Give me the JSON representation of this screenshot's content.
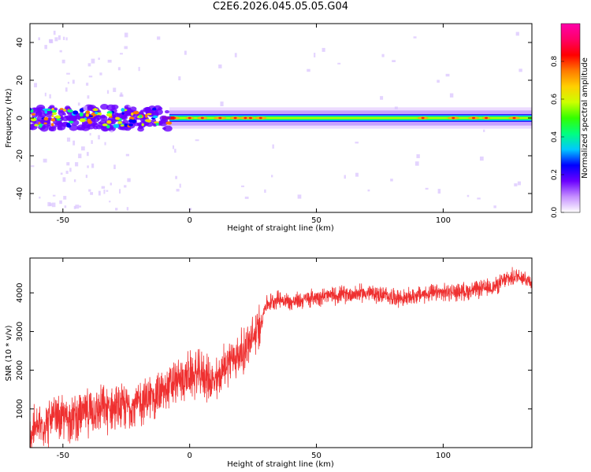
{
  "title": "C2E6.2026.045.05.05.G04",
  "chart_data": [
    {
      "type": "heatmap",
      "title": "C2E6.2026.045.05.05.G04",
      "xlabel": "Height of straight line (km)",
      "ylabel": "Frequency (Hz)",
      "xlim": [
        -63,
        135
      ],
      "ylim": [
        -50,
        50
      ],
      "xticks": [
        -50,
        0,
        50,
        100
      ],
      "yticks": [
        -40,
        -20,
        0,
        20,
        40
      ],
      "grid": false,
      "description_values": {
        "band_center_hz": 0,
        "band_halfwidth_hz_left": 6,
        "band_halfwidth_hz_right": 4
      },
      "colorbar": {
        "label": "Normalized spectral amplitude",
        "range": [
          0.0,
          1.0
        ],
        "ticks": [
          0.0,
          0.2,
          0.4,
          0.6,
          0.8
        ],
        "colors": [
          "#ffffff",
          "#c58fff",
          "#6a00ff",
          "#0000ff",
          "#00c8ff",
          "#00ff80",
          "#33ff00",
          "#ccff00",
          "#ffd000",
          "#ff7a00",
          "#ff0000",
          "#ff0066",
          "#ff00aa"
        ]
      }
    },
    {
      "type": "line",
      "xlabel": "Height of straight line (km)",
      "ylabel": "SNR (10 * v/v)",
      "xlim": [
        -63,
        135
      ],
      "ylim": [
        0,
        4900
      ],
      "xticks": [
        -50,
        0,
        50,
        100
      ],
      "yticks": [
        1000,
        2000,
        3000,
        4000
      ],
      "grid": false,
      "series": [
        {
          "name": "SNR",
          "color": "#ef3030",
          "x": [
            -63,
            -55,
            -45,
            -35,
            -28,
            -22,
            -15,
            -10,
            -5,
            0,
            5,
            10,
            15,
            20,
            25,
            28,
            30,
            35,
            40,
            50,
            60,
            70,
            80,
            85,
            90,
            100,
            110,
            120,
            125,
            130,
            135
          ],
          "values": [
            400,
            700,
            800,
            1000,
            1000,
            1100,
            1300,
            1450,
            1700,
            1850,
            1900,
            1650,
            2250,
            2400,
            2800,
            3200,
            3700,
            3850,
            3750,
            3900,
            3950,
            4000,
            3900,
            3850,
            3950,
            4000,
            4050,
            4150,
            4350,
            4450,
            4300
          ]
        }
      ]
    }
  ]
}
